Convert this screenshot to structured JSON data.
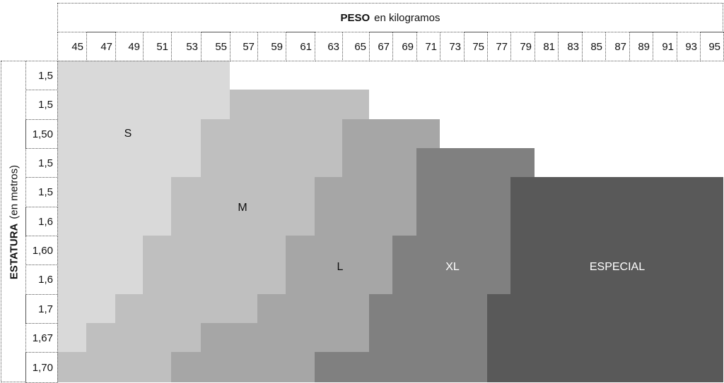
{
  "chart_data": {
    "type": "heatmap",
    "title_bold": "PESO",
    "title_rest": "en kilogramos",
    "ylabel_bold": "ESTATURA",
    "ylabel_rest": "(en metros)",
    "weights": [
      "45",
      "47",
      "49",
      "51",
      "53",
      "55",
      "57",
      "59",
      "61",
      "63",
      "65",
      "67",
      "69",
      "71",
      "73",
      "75",
      "77",
      "79",
      "81",
      "83",
      "85",
      "87",
      "89",
      "91",
      "93",
      "95"
    ],
    "heights": [
      "1,5",
      "1,5",
      "1,50",
      "1,5",
      "1,5",
      "1,6",
      "1,60",
      "1,6",
      "1,7",
      "1,67",
      "1,70"
    ],
    "sizes": {
      "S": {
        "label": "S",
        "color": "#d9d9d9",
        "text_color": "#111111"
      },
      "M": {
        "label": "M",
        "color": "#bfbfbf",
        "text_color": "#111111"
      },
      "L": {
        "label": "L",
        "color": "#a6a6a6",
        "text_color": "#111111"
      },
      "XL": {
        "label": "XL",
        "color": "#808080",
        "text_color": "#ffffff"
      },
      "E": {
        "label": "ESPECIAL",
        "color": "#595959",
        "text_color": "#ffffff"
      }
    },
    "rows": [
      [
        [
          "S",
          45,
          55
        ]
      ],
      [
        [
          "S",
          45,
          55
        ],
        [
          "M",
          57,
          65
        ]
      ],
      [
        [
          "S",
          45,
          53
        ],
        [
          "M",
          55,
          63
        ],
        [
          "L",
          65,
          71
        ]
      ],
      [
        [
          "S",
          45,
          53
        ],
        [
          "M",
          55,
          63
        ],
        [
          "L",
          65,
          69
        ],
        [
          "XL",
          71,
          79
        ]
      ],
      [
        [
          "S",
          45,
          51
        ],
        [
          "M",
          53,
          61
        ],
        [
          "L",
          63,
          69
        ],
        [
          "XL",
          71,
          77
        ],
        [
          "E",
          79,
          95
        ]
      ],
      [
        [
          "S",
          45,
          51
        ],
        [
          "M",
          53,
          61
        ],
        [
          "L",
          63,
          69
        ],
        [
          "XL",
          71,
          77
        ],
        [
          "E",
          79,
          95
        ]
      ],
      [
        [
          "S",
          45,
          49
        ],
        [
          "M",
          51,
          59
        ],
        [
          "L",
          61,
          67
        ],
        [
          "XL",
          69,
          77
        ],
        [
          "E",
          79,
          95
        ]
      ],
      [
        [
          "S",
          45,
          49
        ],
        [
          "M",
          51,
          59
        ],
        [
          "L",
          61,
          67
        ],
        [
          "XL",
          69,
          77
        ],
        [
          "E",
          79,
          95
        ]
      ],
      [
        [
          "S",
          45,
          47
        ],
        [
          "M",
          49,
          57
        ],
        [
          "L",
          59,
          65
        ],
        [
          "XL",
          67,
          75
        ],
        [
          "E",
          77,
          95
        ]
      ],
      [
        [
          "S",
          45,
          45
        ],
        [
          "M",
          47,
          53
        ],
        [
          "L",
          55,
          65
        ],
        [
          "XL",
          67,
          75
        ],
        [
          "E",
          77,
          95
        ]
      ],
      [
        [
          "M",
          45,
          51
        ],
        [
          "L",
          53,
          61
        ],
        [
          "XL",
          63,
          75
        ],
        [
          "E",
          77,
          95
        ]
      ]
    ]
  }
}
